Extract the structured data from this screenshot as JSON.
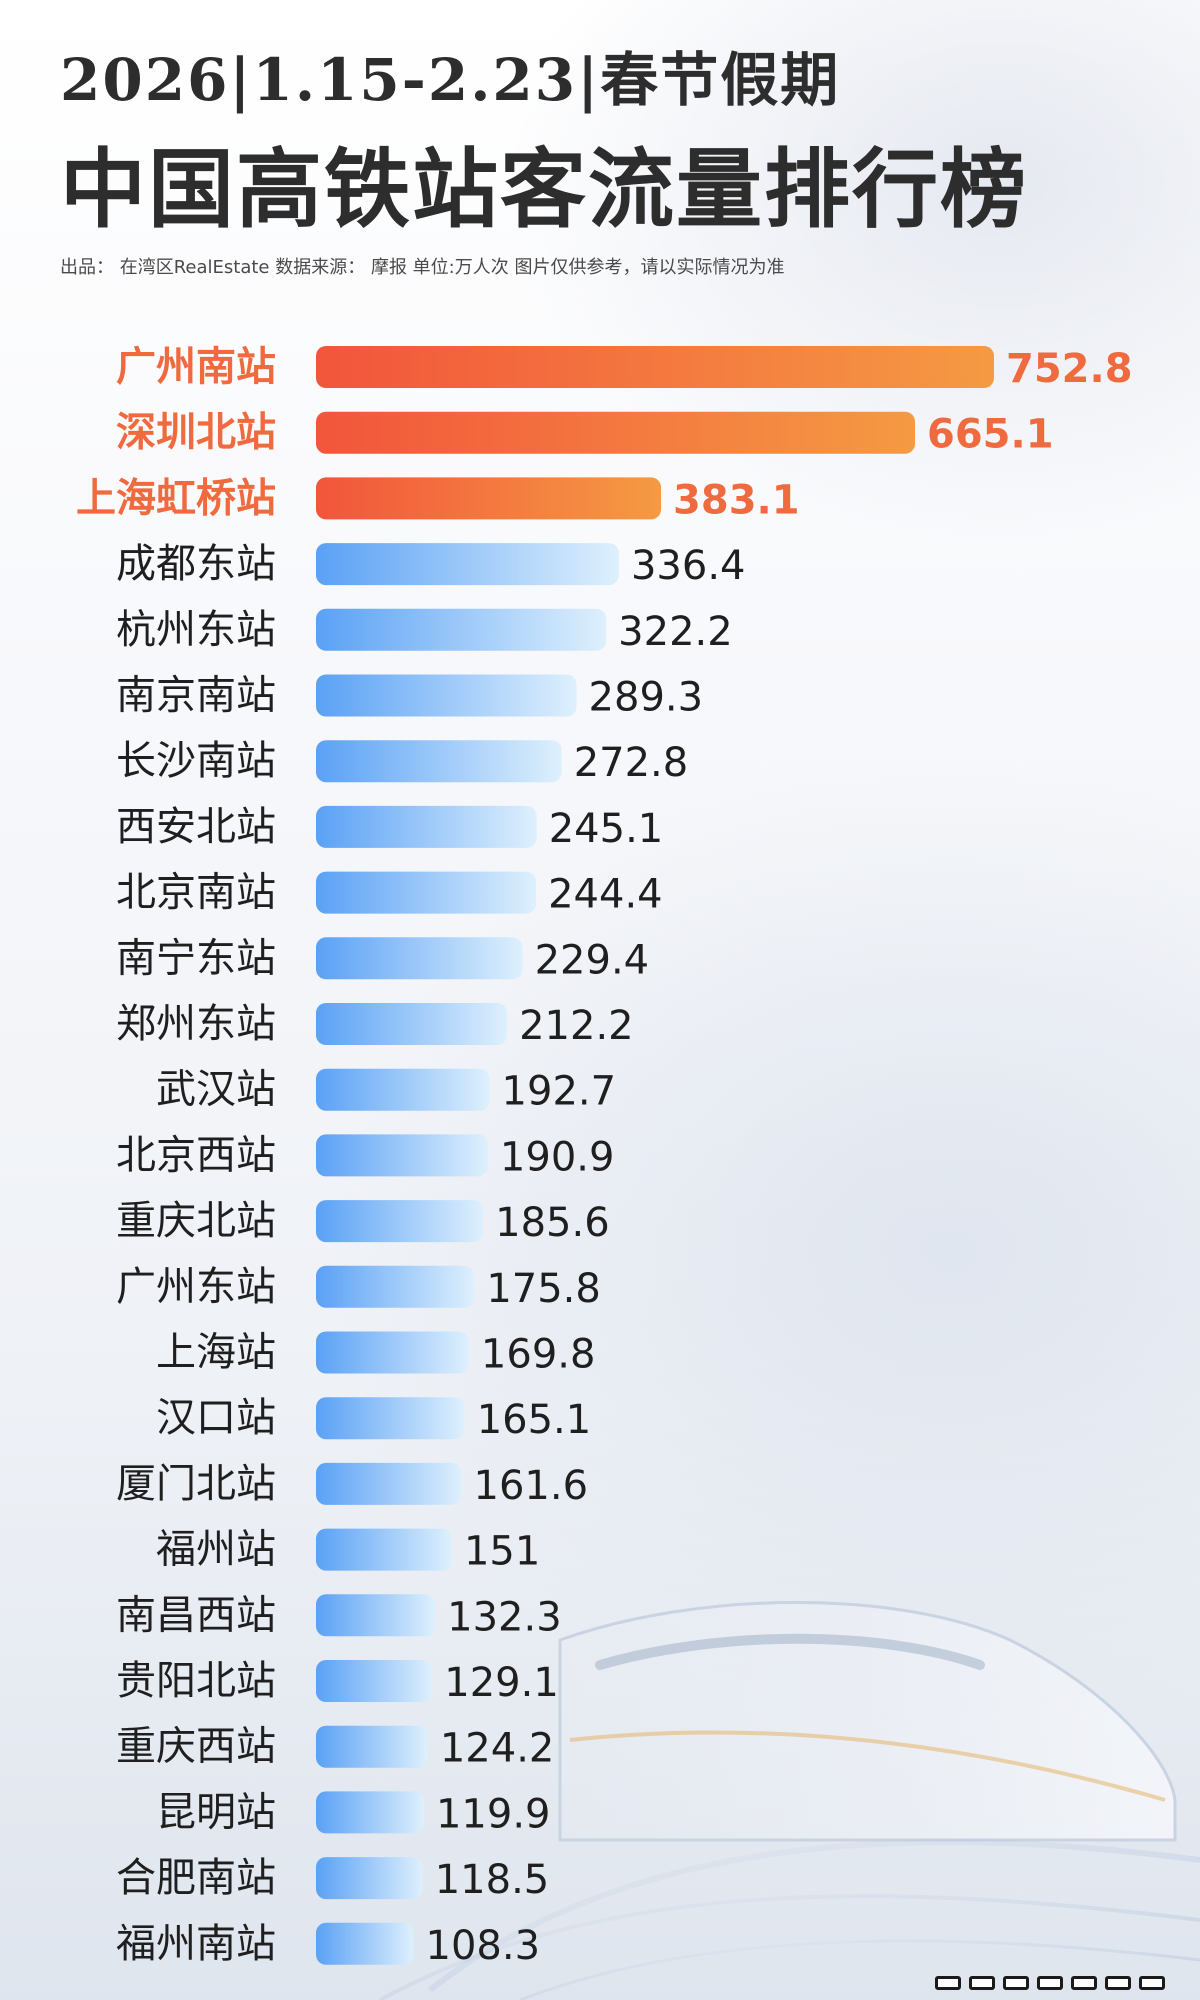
{
  "header": {
    "headline": "2026|1.15-2.23|春节假期",
    "title": "中国高铁站客流量排行榜",
    "credits": "出品： 在湾区RealEstate 数据来源： 摩报  单位:万人次  图片仅供参考，请以实际情况为准"
  },
  "colors": {
    "top_bar_start": "#f2553b",
    "top_bar_end": "#f59a43",
    "top_label": "#ef6a3e",
    "bar_start": "#5aa1f5",
    "bar_end": "#def0fd",
    "label": "#1f1f1f"
  },
  "chart_data": {
    "type": "bar",
    "orientation": "horizontal",
    "unit": "万人次",
    "highlight_top": 3,
    "categories": [
      "广州南站",
      "深圳北站",
      "上海虹桥站",
      "成都东站",
      "杭州东站",
      "南京南站",
      "长沙南站",
      "西安北站",
      "北京南站",
      "南宁东站",
      "郑州东站",
      "武汉站",
      "北京西站",
      "重庆北站",
      "广州东站",
      "上海站",
      "汉口站",
      "厦门北站",
      "福州站",
      "南昌西站",
      "贵阳北站",
      "重庆西站",
      "昆明站",
      "合肥南站",
      "福州南站"
    ],
    "values": [
      752.8,
      665.1,
      383.1,
      336.4,
      322.2,
      289.3,
      272.8,
      245.1,
      244.4,
      229.4,
      212.2,
      192.7,
      190.9,
      185.6,
      175.8,
      169.8,
      165.1,
      161.6,
      151,
      132.3,
      129.1,
      124.2,
      119.9,
      118.5,
      108.3
    ],
    "value_labels": [
      "752.8",
      "665.1",
      "383.1",
      "336.4",
      "322.2",
      "289.3",
      "272.8",
      "245.1",
      "244.4",
      "229.4",
      "212.2",
      "192.7",
      "190.9",
      "185.6",
      "175.8",
      "169.8",
      "165.1",
      "161.6",
      "151",
      "132.3",
      "129.1",
      "124.2",
      "119.9",
      "118.5",
      "108.3"
    ]
  }
}
